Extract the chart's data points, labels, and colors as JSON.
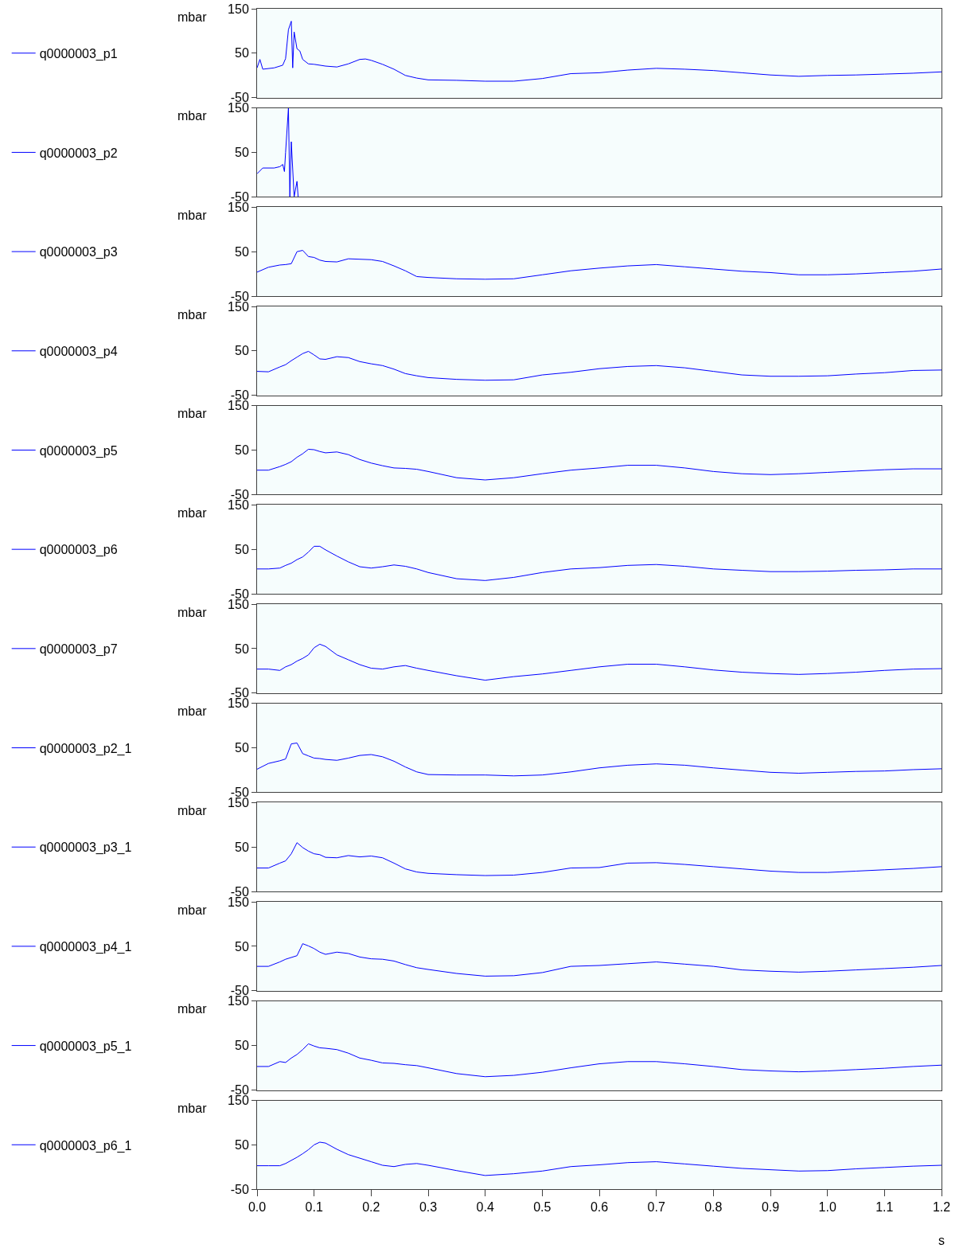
{
  "chart_data": [
    {
      "type": "line",
      "ylabel": "mbar",
      "x": [
        0,
        0.005,
        0.01,
        0.03,
        0.045,
        0.05,
        0.055,
        0.06,
        0.0625,
        0.065,
        0.07,
        0.075,
        0.08,
        0.09,
        0.1,
        0.12,
        0.14,
        0.16,
        0.18,
        0.19,
        0.2,
        0.22,
        0.24,
        0.26,
        0.28,
        0.3,
        0.35,
        0.4,
        0.45,
        0.5,
        0.55,
        0.6,
        0.65,
        0.7,
        0.75,
        0.8,
        0.85,
        0.9,
        0.95,
        1.0,
        1.05,
        1.1,
        1.15,
        1.2
      ],
      "xlim": [
        0,
        1.2
      ],
      "ylim": [
        -50,
        150
      ],
      "yticks": [
        150,
        50,
        -50
      ],
      "tick_labels": "y",
      "legend": "left",
      "series": [
        {
          "name": "q0000003_p1",
          "color": "#0000ff",
          "values": [
            17,
            36,
            14,
            17,
            23,
            38,
            103,
            122,
            17,
            98,
            60,
            55,
            36,
            26,
            25,
            21,
            19,
            26,
            36,
            37,
            34,
            25,
            14,
            0,
            -6,
            -10,
            -11,
            -13,
            -13,
            -7,
            4,
            6,
            12,
            16,
            14,
            11,
            6,
            1,
            -2,
            0,
            1,
            3,
            5,
            8
          ]
        }
      ]
    },
    {
      "type": "line",
      "ylabel": "mbar",
      "x": [
        0,
        0.01,
        0.03,
        0.04,
        0.045,
        0.048,
        0.05,
        0.055,
        0.0575,
        0.06,
        0.065,
        0.07,
        0.072
      ],
      "xlim": [
        0,
        1.2
      ],
      "ylim": [
        -50,
        150
      ],
      "yticks": [
        150,
        50,
        -50
      ],
      "tick_labels": "y",
      "legend": "left",
      "series": [
        {
          "name": "q0000003_p2",
          "color": "#0000ff",
          "values": [
            2,
            15,
            15,
            18,
            23,
            7,
            50,
            150,
            -50,
            74,
            -50,
            -15,
            -50
          ]
        }
      ]
    },
    {
      "type": "line",
      "ylabel": "mbar",
      "x": [
        0,
        0.02,
        0.04,
        0.05,
        0.06,
        0.07,
        0.08,
        0.09,
        0.1,
        0.11,
        0.12,
        0.14,
        0.16,
        0.18,
        0.2,
        0.22,
        0.24,
        0.26,
        0.28,
        0.3,
        0.35,
        0.4,
        0.45,
        0.5,
        0.55,
        0.6,
        0.65,
        0.7,
        0.75,
        0.8,
        0.85,
        0.9,
        0.95,
        1.0,
        1.05,
        1.1,
        1.15,
        1.2
      ],
      "xlim": [
        0,
        1.2
      ],
      "ylim": [
        -50,
        150
      ],
      "yticks": [
        150,
        50,
        -50
      ],
      "tick_labels": "y",
      "legend": "left",
      "series": [
        {
          "name": "q0000003_p3",
          "color": "#0000ff",
          "values": [
            4,
            15,
            20,
            21,
            23,
            50,
            53,
            39,
            37,
            31,
            28,
            27,
            34,
            33,
            32,
            28,
            18,
            7,
            -6,
            -8,
            -11,
            -12,
            -11,
            -2,
            7,
            13,
            18,
            21,
            16,
            11,
            6,
            3,
            -2,
            -2,
            0,
            3,
            6,
            11
          ]
        }
      ]
    },
    {
      "type": "line",
      "ylabel": "mbar",
      "x": [
        0,
        0.02,
        0.04,
        0.05,
        0.06,
        0.07,
        0.08,
        0.09,
        0.1,
        0.11,
        0.12,
        0.14,
        0.16,
        0.18,
        0.2,
        0.22,
        0.24,
        0.26,
        0.28,
        0.3,
        0.35,
        0.4,
        0.45,
        0.5,
        0.55,
        0.6,
        0.65,
        0.7,
        0.75,
        0.8,
        0.85,
        0.9,
        0.95,
        1.0,
        1.05,
        1.1,
        1.15,
        1.2
      ],
      "xlim": [
        0,
        1.2
      ],
      "ylim": [
        -50,
        150
      ],
      "yticks": [
        150,
        50,
        -50
      ],
      "tick_labels": "y",
      "legend": "left",
      "series": [
        {
          "name": "q0000003_p4",
          "color": "#0000ff",
          "values": [
            4,
            3,
            14,
            19,
            28,
            36,
            44,
            49,
            41,
            32,
            31,
            37,
            35,
            26,
            21,
            17,
            9,
            -1,
            -6,
            -10,
            -14,
            -16,
            -15,
            -4,
            2,
            10,
            15,
            17,
            12,
            4,
            -4,
            -7,
            -7,
            -6,
            -2,
            1,
            6,
            7
          ]
        }
      ]
    },
    {
      "type": "line",
      "ylabel": "mbar",
      "x": [
        0,
        0.02,
        0.04,
        0.05,
        0.06,
        0.07,
        0.08,
        0.09,
        0.1,
        0.11,
        0.12,
        0.14,
        0.16,
        0.18,
        0.2,
        0.22,
        0.24,
        0.26,
        0.28,
        0.3,
        0.35,
        0.4,
        0.45,
        0.5,
        0.55,
        0.6,
        0.65,
        0.7,
        0.75,
        0.8,
        0.85,
        0.9,
        0.95,
        1.0,
        1.05,
        1.1,
        1.15,
        1.2
      ],
      "xlim": [
        0,
        1.2
      ],
      "ylim": [
        -50,
        150
      ],
      "yticks": [
        150,
        50,
        -50
      ],
      "tick_labels": "y",
      "legend": "left",
      "series": [
        {
          "name": "q0000003_p5",
          "color": "#0000ff",
          "values": [
            5,
            5,
            13,
            18,
            24,
            34,
            42,
            52,
            51,
            47,
            44,
            46,
            40,
            29,
            21,
            15,
            10,
            9,
            7,
            2,
            -12,
            -17,
            -12,
            -3,
            5,
            10,
            16,
            16,
            10,
            2,
            -3,
            -5,
            -3,
            0,
            3,
            6,
            8,
            8
          ]
        }
      ]
    },
    {
      "type": "line",
      "ylabel": "mbar",
      "x": [
        0,
        0.02,
        0.04,
        0.05,
        0.06,
        0.07,
        0.08,
        0.09,
        0.1,
        0.11,
        0.12,
        0.14,
        0.16,
        0.18,
        0.2,
        0.22,
        0.24,
        0.26,
        0.28,
        0.3,
        0.35,
        0.4,
        0.45,
        0.5,
        0.55,
        0.6,
        0.65,
        0.7,
        0.75,
        0.8,
        0.85,
        0.9,
        0.95,
        1.0,
        1.05,
        1.1,
        1.15,
        1.2
      ],
      "xlim": [
        0,
        1.2
      ],
      "ylim": [
        -50,
        150
      ],
      "yticks": [
        150,
        50,
        -50
      ],
      "tick_labels": "y",
      "legend": "left",
      "series": [
        {
          "name": "q0000003_p6",
          "color": "#0000ff",
          "values": [
            6,
            6,
            8,
            14,
            19,
            27,
            33,
            44,
            57,
            57,
            49,
            35,
            22,
            11,
            8,
            11,
            15,
            12,
            6,
            -2,
            -16,
            -20,
            -13,
            -2,
            6,
            9,
            14,
            16,
            12,
            6,
            3,
            0,
            0,
            1,
            3,
            4,
            6,
            6
          ]
        }
      ]
    },
    {
      "type": "line",
      "ylabel": "mbar",
      "x": [
        0,
        0.02,
        0.04,
        0.05,
        0.06,
        0.07,
        0.08,
        0.09,
        0.1,
        0.11,
        0.12,
        0.14,
        0.16,
        0.18,
        0.2,
        0.22,
        0.24,
        0.26,
        0.28,
        0.3,
        0.35,
        0.4,
        0.45,
        0.5,
        0.55,
        0.6,
        0.65,
        0.7,
        0.75,
        0.8,
        0.85,
        0.9,
        0.95,
        1.0,
        1.05,
        1.1,
        1.15,
        1.2
      ],
      "xlim": [
        0,
        1.2
      ],
      "ylim": [
        -50,
        150
      ],
      "yticks": [
        150,
        50,
        -50
      ],
      "tick_labels": "y",
      "legend": "left",
      "series": [
        {
          "name": "q0000003_p7",
          "color": "#0000ff",
          "values": [
            4,
            4,
            1,
            9,
            14,
            22,
            28,
            36,
            52,
            60,
            55,
            36,
            25,
            14,
            6,
            4,
            9,
            12,
            6,
            1,
            -11,
            -21,
            -13,
            -7,
            1,
            9,
            15,
            15,
            9,
            2,
            -3,
            -6,
            -8,
            -6,
            -3,
            1,
            4,
            5
          ]
        }
      ]
    },
    {
      "type": "line",
      "ylabel": "mbar",
      "x": [
        0,
        0.02,
        0.04,
        0.05,
        0.06,
        0.07,
        0.08,
        0.09,
        0.1,
        0.11,
        0.12,
        0.14,
        0.16,
        0.18,
        0.2,
        0.22,
        0.24,
        0.26,
        0.28,
        0.3,
        0.35,
        0.4,
        0.45,
        0.5,
        0.55,
        0.6,
        0.65,
        0.7,
        0.75,
        0.8,
        0.85,
        0.9,
        0.95,
        1.0,
        1.05,
        1.1,
        1.15,
        1.2
      ],
      "xlim": [
        0,
        1.2
      ],
      "ylim": [
        -50,
        150
      ],
      "yticks": [
        150,
        50,
        -50
      ],
      "tick_labels": "y",
      "legend": "left",
      "series": [
        {
          "name": "q0000003_p2_1",
          "color": "#0000ff",
          "values": [
            2,
            15,
            21,
            25,
            59,
            61,
            37,
            32,
            27,
            26,
            24,
            22,
            27,
            33,
            35,
            30,
            20,
            7,
            -4,
            -10,
            -11,
            -11,
            -13,
            -11,
            -4,
            5,
            11,
            14,
            11,
            5,
            0,
            -5,
            -7,
            -5,
            -3,
            -2,
            1,
            3
          ]
        }
      ]
    },
    {
      "type": "line",
      "ylabel": "mbar",
      "x": [
        0,
        0.02,
        0.04,
        0.05,
        0.06,
        0.07,
        0.08,
        0.09,
        0.1,
        0.11,
        0.12,
        0.14,
        0.16,
        0.18,
        0.2,
        0.22,
        0.24,
        0.26,
        0.28,
        0.3,
        0.35,
        0.4,
        0.45,
        0.5,
        0.55,
        0.6,
        0.65,
        0.7,
        0.75,
        0.8,
        0.85,
        0.9,
        0.95,
        1.0,
        1.05,
        1.1,
        1.15,
        1.2
      ],
      "xlim": [
        0,
        1.2
      ],
      "ylim": [
        -50,
        150
      ],
      "yticks": [
        150,
        50,
        -50
      ],
      "tick_labels": "y",
      "legend": "left",
      "series": [
        {
          "name": "q0000003_p3_1",
          "color": "#0000ff",
          "values": [
            3,
            3,
            14,
            19,
            35,
            60,
            49,
            41,
            35,
            33,
            27,
            26,
            31,
            28,
            30,
            26,
            14,
            1,
            -6,
            -9,
            -12,
            -14,
            -13,
            -7,
            3,
            4,
            14,
            15,
            11,
            6,
            1,
            -4,
            -7,
            -7,
            -4,
            -1,
            2,
            6
          ]
        }
      ]
    },
    {
      "type": "line",
      "ylabel": "mbar",
      "x": [
        0,
        0.02,
        0.04,
        0.05,
        0.06,
        0.07,
        0.08,
        0.09,
        0.1,
        0.11,
        0.12,
        0.14,
        0.16,
        0.18,
        0.2,
        0.22,
        0.24,
        0.26,
        0.28,
        0.3,
        0.35,
        0.4,
        0.45,
        0.5,
        0.55,
        0.6,
        0.65,
        0.7,
        0.75,
        0.8,
        0.85,
        0.9,
        0.95,
        1.0,
        1.05,
        1.1,
        1.15,
        1.2
      ],
      "xlim": [
        0,
        1.2
      ],
      "ylim": [
        -50,
        150
      ],
      "yticks": [
        150,
        50,
        -50
      ],
      "tick_labels": "y",
      "legend": "left",
      "series": [
        {
          "name": "q0000003_p4_1",
          "color": "#0000ff",
          "values": [
            5,
            5,
            15,
            21,
            25,
            29,
            56,
            51,
            45,
            37,
            32,
            37,
            34,
            26,
            22,
            21,
            17,
            9,
            2,
            -2,
            -11,
            -17,
            -16,
            -9,
            5,
            7,
            11,
            15,
            10,
            5,
            -3,
            -6,
            -8,
            -6,
            -3,
            0,
            3,
            7
          ]
        }
      ]
    },
    {
      "type": "line",
      "ylabel": "mbar",
      "x": [
        0,
        0.02,
        0.04,
        0.05,
        0.06,
        0.07,
        0.08,
        0.09,
        0.1,
        0.11,
        0.12,
        0.14,
        0.16,
        0.18,
        0.2,
        0.22,
        0.24,
        0.26,
        0.28,
        0.3,
        0.35,
        0.4,
        0.45,
        0.5,
        0.55,
        0.6,
        0.65,
        0.7,
        0.75,
        0.8,
        0.85,
        0.9,
        0.95,
        1.0,
        1.05,
        1.1,
        1.15,
        1.2
      ],
      "xlim": [
        0,
        1.2
      ],
      "ylim": [
        -50,
        150
      ],
      "yticks": [
        150,
        50,
        -50
      ],
      "tick_labels": "y",
      "legend": "left",
      "series": [
        {
          "name": "q0000003_p5_1",
          "color": "#0000ff",
          "values": [
            3,
            3,
            14,
            12,
            22,
            30,
            41,
            54,
            49,
            45,
            44,
            41,
            33,
            22,
            17,
            11,
            10,
            7,
            5,
            0,
            -13,
            -20,
            -17,
            -10,
            0,
            9,
            14,
            14,
            9,
            3,
            -4,
            -7,
            -9,
            -7,
            -4,
            -1,
            3,
            6
          ]
        }
      ]
    },
    {
      "type": "line",
      "ylabel": "mbar",
      "xlabel": "s",
      "x": [
        0,
        0.02,
        0.04,
        0.05,
        0.06,
        0.07,
        0.08,
        0.09,
        0.1,
        0.11,
        0.12,
        0.14,
        0.16,
        0.18,
        0.2,
        0.22,
        0.24,
        0.26,
        0.28,
        0.3,
        0.35,
        0.4,
        0.45,
        0.5,
        0.55,
        0.6,
        0.65,
        0.7,
        0.75,
        0.8,
        0.85,
        0.9,
        0.95,
        1.0,
        1.05,
        1.1,
        1.15,
        1.2
      ],
      "xlim": [
        0,
        1.2
      ],
      "ylim": [
        -50,
        150
      ],
      "yticks": [
        150,
        50,
        -50
      ],
      "legend": "left",
      "xticks": [
        {
          "value": 0,
          "label": "0.0"
        },
        0.1,
        0.2,
        0.3,
        0.4,
        0.5,
        0.6,
        0.7,
        0.8,
        0.9,
        {
          "value": 1,
          "label": "1.0"
        },
        1.1,
        1.2
      ],
      "series": [
        {
          "name": "q0000003_p6_1",
          "color": "#0000ff",
          "values": [
            3,
            3,
            3,
            8,
            15,
            22,
            30,
            39,
            50,
            56,
            54,
            40,
            28,
            20,
            12,
            4,
            1,
            6,
            8,
            4,
            -8,
            -19,
            -15,
            -9,
            1,
            5,
            10,
            12,
            7,
            2,
            -3,
            -6,
            -9,
            -8,
            -4,
            -1,
            2,
            4
          ]
        }
      ]
    }
  ]
}
